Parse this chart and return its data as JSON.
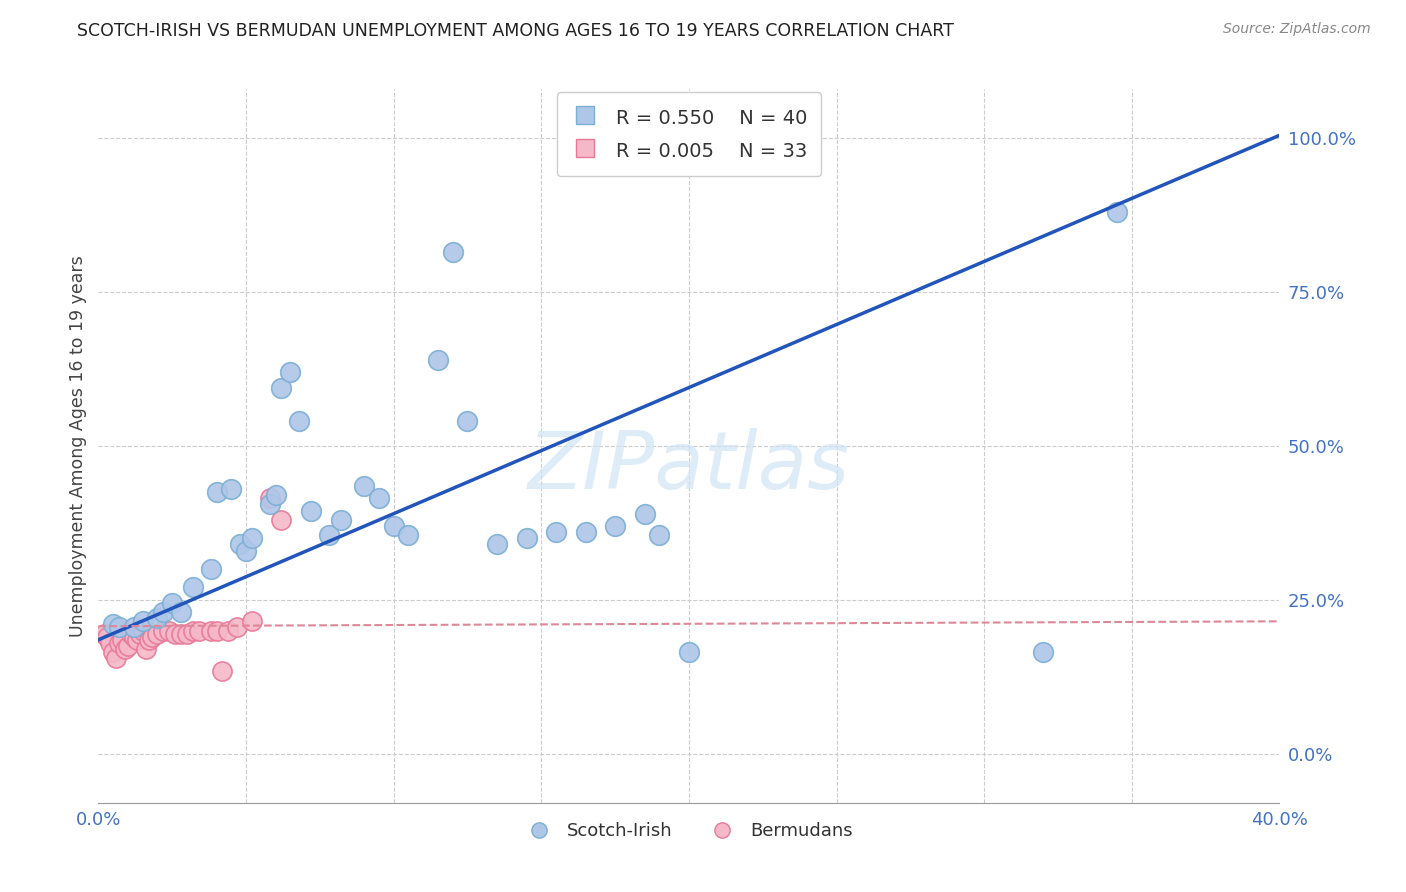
{
  "title": "SCOTCH-IRISH VS BERMUDAN UNEMPLOYMENT AMONG AGES 16 TO 19 YEARS CORRELATION CHART",
  "source": "Source: ZipAtlas.com",
  "ylabel": "Unemployment Among Ages 16 to 19 years",
  "xlim": [
    0.0,
    0.4
  ],
  "ylim": [
    -0.08,
    1.08
  ],
  "x_ticks": [
    0.0,
    0.05,
    0.1,
    0.15,
    0.2,
    0.25,
    0.3,
    0.35,
    0.4
  ],
  "x_tick_labels": [
    "0.0%",
    "",
    "",
    "",
    "",
    "",
    "",
    "",
    "40.0%"
  ],
  "y_ticks_right": [
    0.0,
    0.25,
    0.5,
    0.75,
    1.0
  ],
  "y_tick_labels_right": [
    "0.0%",
    "25.0%",
    "50.0%",
    "75.0%",
    "100.0%"
  ],
  "scotch_irish_color": "#aec6e8",
  "scotch_irish_edge": "#7bafd4",
  "bermudan_color": "#f5b8c8",
  "bermudan_edge": "#e87898",
  "line_blue": "#2255bb",
  "line_pink": "#dd8899",
  "watermark_color": "#d0e4f5",
  "si_line_x0": 0.0,
  "si_line_y0": 0.185,
  "si_line_x1": 0.4,
  "si_line_y1": 1.005,
  "bm_line_x0": 0.0,
  "bm_line_y0": 0.207,
  "bm_line_x1": 0.4,
  "bm_line_y1": 0.215,
  "scotch_irish_x": [
    0.005,
    0.007,
    0.012,
    0.015,
    0.02,
    0.022,
    0.025,
    0.028,
    0.032,
    0.038,
    0.04,
    0.045,
    0.048,
    0.05,
    0.052,
    0.058,
    0.06,
    0.062,
    0.065,
    0.068,
    0.072,
    0.078,
    0.082,
    0.09,
    0.095,
    0.1,
    0.105,
    0.115,
    0.12,
    0.125,
    0.135,
    0.145,
    0.155,
    0.165,
    0.175,
    0.185,
    0.19,
    0.2,
    0.32,
    0.345
  ],
  "scotch_irish_y": [
    0.21,
    0.205,
    0.205,
    0.215,
    0.22,
    0.23,
    0.245,
    0.23,
    0.27,
    0.3,
    0.425,
    0.43,
    0.34,
    0.33,
    0.35,
    0.405,
    0.42,
    0.595,
    0.62,
    0.54,
    0.395,
    0.355,
    0.38,
    0.435,
    0.415,
    0.37,
    0.355,
    0.64,
    0.815,
    0.54,
    0.34,
    0.35,
    0.36,
    0.36,
    0.37,
    0.39,
    0.355,
    0.165,
    0.165,
    0.88
  ],
  "bermudan_x": [
    0.002,
    0.003,
    0.004,
    0.005,
    0.006,
    0.007,
    0.008,
    0.009,
    0.01,
    0.011,
    0.012,
    0.013,
    0.014,
    0.015,
    0.016,
    0.017,
    0.018,
    0.02,
    0.022,
    0.024,
    0.026,
    0.028,
    0.03,
    0.032,
    0.034,
    0.038,
    0.04,
    0.042,
    0.044,
    0.047,
    0.052,
    0.058,
    0.062
  ],
  "bermudan_y": [
    0.195,
    0.19,
    0.18,
    0.165,
    0.155,
    0.18,
    0.185,
    0.17,
    0.175,
    0.195,
    0.19,
    0.185,
    0.195,
    0.2,
    0.17,
    0.185,
    0.19,
    0.195,
    0.2,
    0.2,
    0.195,
    0.195,
    0.195,
    0.2,
    0.2,
    0.2,
    0.2,
    0.135,
    0.2,
    0.205,
    0.215,
    0.415,
    0.38
  ]
}
